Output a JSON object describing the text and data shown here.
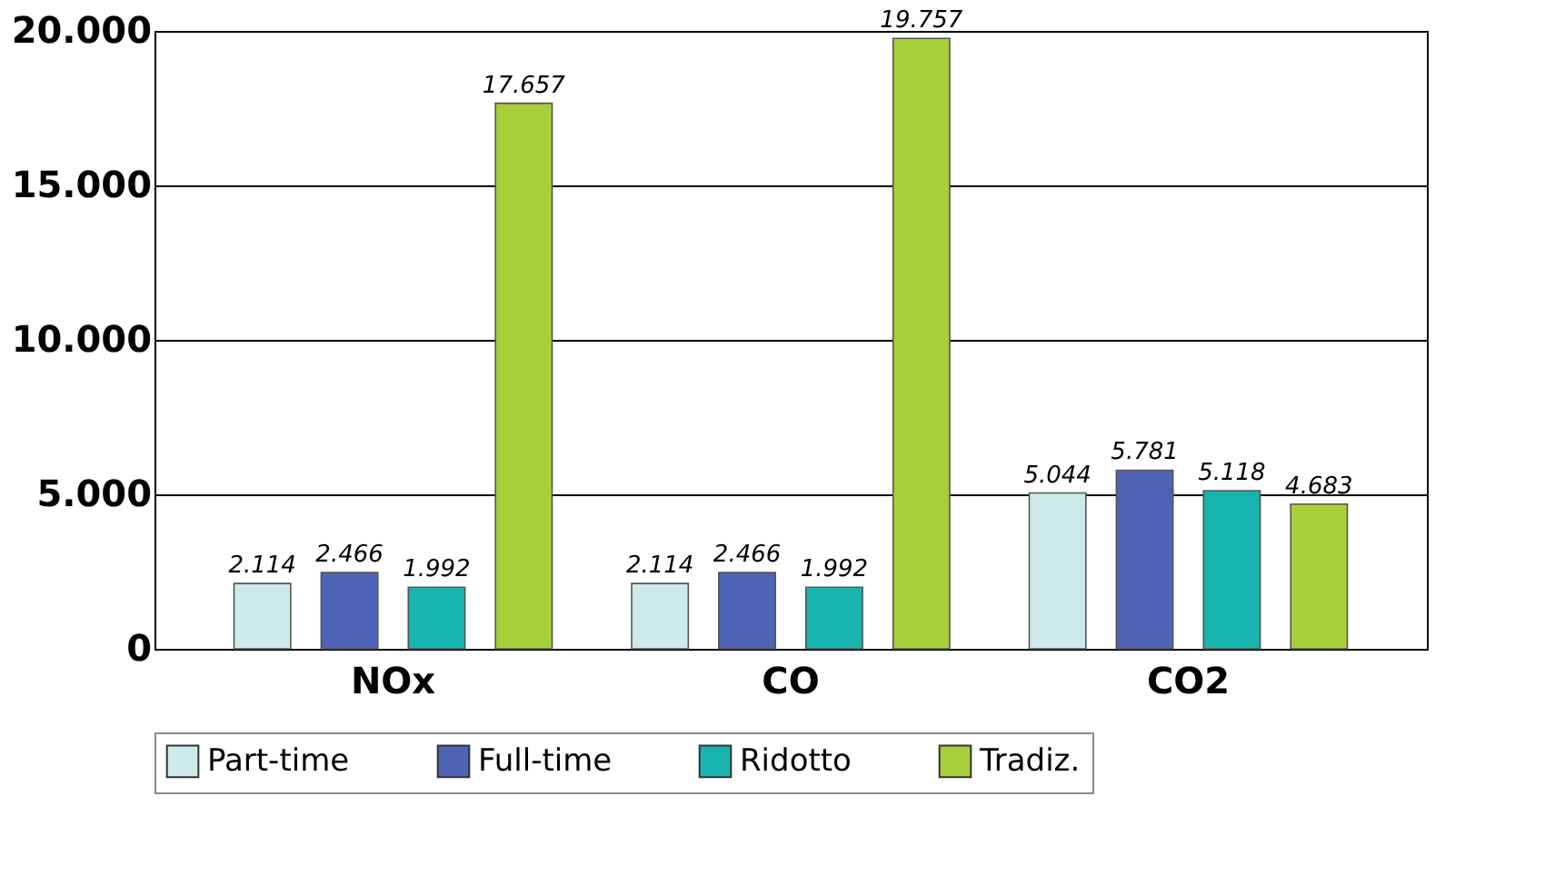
{
  "chart_data": {
    "type": "bar",
    "categories": [
      "NOx",
      "CO",
      "CO2"
    ],
    "series": [
      {
        "name": "Part-time",
        "color": "#cdeaec",
        "values": [
          2114,
          2114,
          5044
        ],
        "value_labels": [
          "2.114",
          "2.114",
          "5.044"
        ]
      },
      {
        "name": "Full-time",
        "color": "#4e62b6",
        "values": [
          2466,
          2466,
          5781
        ],
        "value_labels": [
          "2.466",
          "2.466",
          "5.781"
        ]
      },
      {
        "name": "Ridotto",
        "color": "#18b4ae",
        "values": [
          1992,
          1992,
          5118
        ],
        "value_labels": [
          "1.992",
          "1.992",
          "5.118"
        ]
      },
      {
        "name": "Tradiz.",
        "color": "#a6cf3a",
        "values": [
          17657,
          19757,
          4683
        ],
        "value_labels": [
          "17.657",
          "19.757",
          "4.683"
        ]
      }
    ],
    "ylim": [
      0,
      20000
    ],
    "yticks": [
      {
        "value": 0,
        "label": "0"
      },
      {
        "value": 5000,
        "label": "5.000"
      },
      {
        "value": 10000,
        "label": "10.000"
      },
      {
        "value": 15000,
        "label": "15.000"
      },
      {
        "value": 20000,
        "label": "20.000"
      }
    ],
    "grid": "y",
    "legend": "bottom"
  }
}
